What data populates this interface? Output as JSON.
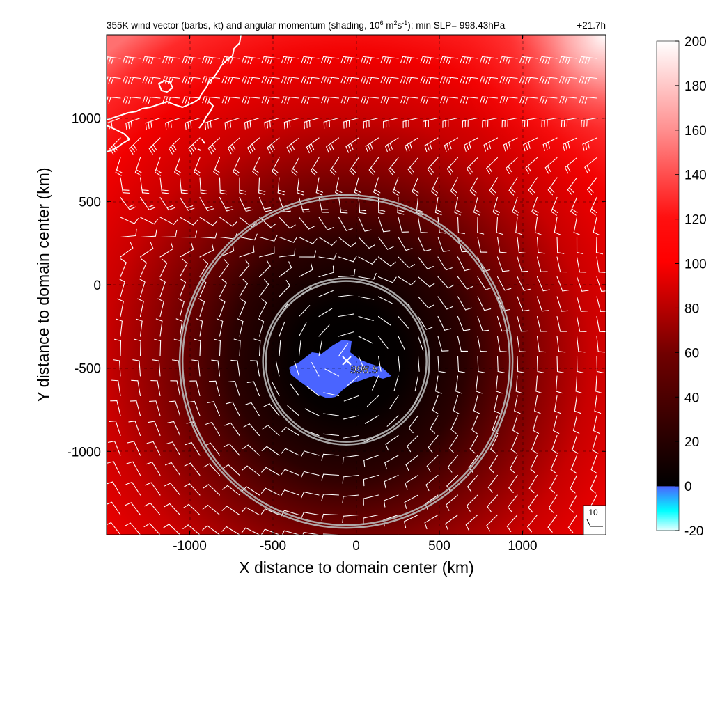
{
  "chart_data": {
    "type": "heatmap",
    "title": "355K wind vector (barbs, kt) and angular momentum (shading, 10",
    "title_sup1": "6",
    "title_mid": " m",
    "title_sup2": "2",
    "title_mid2": "s",
    "title_sup3": "-1",
    "title_end": "); min SLP= 998.43hPa",
    "lead_time": "+21.7h",
    "xlabel": "X distance to domain center (km)",
    "ylabel": "Y distance to domain center (km)",
    "xlim": [
      -1500,
      1500
    ],
    "ylim": [
      -1500,
      1500
    ],
    "x_ticks": [
      "-1000",
      "-500",
      "0",
      "500",
      "1000"
    ],
    "y_ticks": [
      "1000",
      "500",
      "0",
      "-500",
      "-1000"
    ],
    "x_tick_values": [
      -1000,
      -500,
      0,
      500,
      1000
    ],
    "y_tick_values": [
      1000,
      500,
      0,
      -500,
      -1000
    ],
    "grid": true,
    "center_marker": {
      "x": -60,
      "y": -460,
      "label": "998.5"
    },
    "rings": [
      {
        "x": -60,
        "y": -460,
        "radius_km": 500
      },
      {
        "x": -60,
        "y": -460,
        "radius_km": 1000
      }
    ],
    "colorbar": {
      "min": -20,
      "max": 200,
      "ticks": [
        "200",
        "180",
        "160",
        "140",
        "120",
        "100",
        "80",
        "60",
        "40",
        "20",
        "0",
        "-20"
      ],
      "tick_values": [
        200,
        180,
        160,
        140,
        120,
        100,
        80,
        60,
        40,
        20,
        0,
        -20
      ]
    },
    "barb_reference": {
      "speed_kt": "10"
    },
    "colors": {
      "negative": "#4a64ff",
      "negative_deep": "#00ffff",
      "zero": "#000000",
      "mid": "#ff0000",
      "max": "#ffffff"
    }
  }
}
